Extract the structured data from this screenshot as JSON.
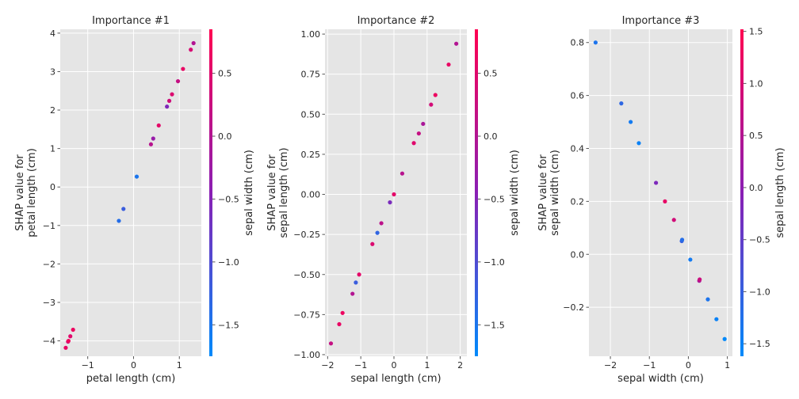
{
  "chart_data": [
    {
      "type": "scatter",
      "title": "Importance #1",
      "xlabel": "petal length (cm)",
      "ylabel": [
        "SHAP value for",
        "petal length (cm)"
      ],
      "colorbar_label": "sepal width (cm)",
      "xlim": [
        -1.6,
        1.48
      ],
      "ylim": [
        -4.4,
        4.1
      ],
      "xticks": [
        -1,
        0,
        1
      ],
      "yticks": [
        -4,
        -3,
        -2,
        -1,
        0,
        1,
        2,
        3,
        4
      ],
      "yticklabels": [
        "−4",
        "−3",
        "−2",
        "−1",
        "0",
        "1",
        "2",
        "3",
        "4"
      ],
      "xticklabels": [
        "−1",
        "0",
        "1"
      ],
      "clim": [
        -1.75,
        0.85
      ],
      "cticks": [
        -1.5,
        -1.0,
        -0.5,
        0.0,
        0.5
      ],
      "cticklabels": [
        "−1.5",
        "−1.0",
        "−0.5",
        "0.0",
        "0.5"
      ],
      "points": [
        {
          "x": -1.48,
          "y": -4.18,
          "c": 0.6
        },
        {
          "x": -1.43,
          "y": -4.02,
          "c": 0.3
        },
        {
          "x": -1.42,
          "y": -4.0,
          "c": 0.7
        },
        {
          "x": -1.38,
          "y": -3.88,
          "c": 0.5
        },
        {
          "x": -1.32,
          "y": -3.71,
          "c": 0.65
        },
        {
          "x": -0.32,
          "y": -0.88,
          "c": -1.4
        },
        {
          "x": -0.22,
          "y": -0.57,
          "c": -1.2
        },
        {
          "x": 0.07,
          "y": 0.27,
          "c": -1.5
        },
        {
          "x": 0.38,
          "y": 1.11,
          "c": 0.05
        },
        {
          "x": 0.43,
          "y": 1.26,
          "c": -0.3
        },
        {
          "x": 0.55,
          "y": 1.6,
          "c": 0.55
        },
        {
          "x": 0.73,
          "y": 2.09,
          "c": -0.55
        },
        {
          "x": 0.78,
          "y": 2.24,
          "c": 0.3
        },
        {
          "x": 0.84,
          "y": 2.41,
          "c": 0.45
        },
        {
          "x": 0.97,
          "y": 2.75,
          "c": 0.2
        },
        {
          "x": 1.08,
          "y": 3.07,
          "c": 0.6
        },
        {
          "x": 1.25,
          "y": 3.57,
          "c": 0.4
        },
        {
          "x": 1.31,
          "y": 3.74,
          "c": 0.0
        }
      ]
    },
    {
      "type": "scatter",
      "title": "Importance #2",
      "xlabel": "sepal length (cm)",
      "ylabel": [
        "SHAP value for",
        "sepal length (cm)"
      ],
      "colorbar_label": "sepal width (cm)",
      "xlim": [
        -2.08,
        2.2
      ],
      "ylim": [
        -1.01,
        1.03
      ],
      "xticks": [
        -2,
        -1,
        0,
        1,
        2
      ],
      "xticklabels": [
        "−2",
        "−1",
        "0",
        "1",
        "2"
      ],
      "yticks": [
        -1.0,
        -0.75,
        -0.5,
        -0.25,
        0.0,
        0.25,
        0.5,
        0.75,
        1.0
      ],
      "yticklabels": [
        "−1.00",
        "−0.75",
        "−0.50",
        "−0.25",
        "0.00",
        "0.25",
        "0.50",
        "0.75",
        "1.00"
      ],
      "clim": [
        -1.75,
        0.85
      ],
      "cticks": [
        -1.5,
        -1.0,
        -0.5,
        0.0,
        0.5
      ],
      "cticklabels": [
        "−1.5",
        "−1.0",
        "−0.5",
        "0.0",
        "0.5"
      ],
      "points": [
        {
          "x": -1.9,
          "y": -0.93,
          "c": 0.2
        },
        {
          "x": -1.65,
          "y": -0.81,
          "c": 0.6
        },
        {
          "x": -1.55,
          "y": -0.74,
          "c": 0.65
        },
        {
          "x": -1.05,
          "y": -0.5,
          "c": 0.55
        },
        {
          "x": -1.15,
          "y": -0.55,
          "c": -1.2
        },
        {
          "x": -1.25,
          "y": -0.62,
          "c": 0.0
        },
        {
          "x": -0.65,
          "y": -0.31,
          "c": 0.45
        },
        {
          "x": -0.5,
          "y": -0.24,
          "c": -1.3
        },
        {
          "x": -0.38,
          "y": -0.18,
          "c": 0.1
        },
        {
          "x": -0.12,
          "y": -0.05,
          "c": -0.6
        },
        {
          "x": 0.0,
          "y": 0.0,
          "c": 0.55
        },
        {
          "x": 0.25,
          "y": 0.13,
          "c": 0.05
        },
        {
          "x": 0.6,
          "y": 0.32,
          "c": 0.5
        },
        {
          "x": 0.75,
          "y": 0.38,
          "c": 0.2
        },
        {
          "x": 0.88,
          "y": 0.44,
          "c": -0.1
        },
        {
          "x": 1.12,
          "y": 0.56,
          "c": 0.35
        },
        {
          "x": 1.25,
          "y": 0.62,
          "c": 0.65
        },
        {
          "x": 1.65,
          "y": 0.81,
          "c": 0.6
        },
        {
          "x": 1.88,
          "y": 0.94,
          "c": 0.0
        }
      ]
    },
    {
      "type": "scatter",
      "title": "Importance #3",
      "xlabel": "sepal width (cm)",
      "ylabel": [
        "SHAP value for",
        "sepal width (cm)"
      ],
      "colorbar_label": "sepal length (cm)",
      "xlim": [
        -2.55,
        1.13
      ],
      "ylim": [
        -0.385,
        0.85
      ],
      "xticks": [
        -2,
        -1,
        0,
        1
      ],
      "xticklabels": [
        "−2",
        "−1",
        "0",
        "1"
      ],
      "yticks": [
        -0.2,
        0.0,
        0.2,
        0.4,
        0.6,
        0.8
      ],
      "yticklabels": [
        "−0.2",
        "0.0",
        "0.2",
        "0.4",
        "0.6",
        "0.8"
      ],
      "clim": [
        -1.62,
        1.52
      ],
      "cticks": [
        -1.5,
        -1.0,
        -0.5,
        0.0,
        0.5,
        1.0,
        1.5
      ],
      "cticklabels": [
        "−1.5",
        "−1.0",
        "−0.5",
        "0.0",
        "0.5",
        "1.0",
        "1.5"
      ],
      "points": [
        {
          "x": -2.38,
          "y": 0.8,
          "c": -1.3
        },
        {
          "x": -1.72,
          "y": 0.57,
          "c": -1.1
        },
        {
          "x": -1.48,
          "y": 0.5,
          "c": -1.4
        },
        {
          "x": -1.27,
          "y": 0.42,
          "c": -1.5
        },
        {
          "x": -0.83,
          "y": 0.27,
          "c": -0.2
        },
        {
          "x": -0.6,
          "y": 0.2,
          "c": 1.2
        },
        {
          "x": -0.37,
          "y": 0.13,
          "c": 0.9
        },
        {
          "x": -0.17,
          "y": 0.05,
          "c": -1.0
        },
        {
          "x": -0.16,
          "y": 0.055,
          "c": -1.2
        },
        {
          "x": 0.05,
          "y": -0.02,
          "c": -1.4
        },
        {
          "x": 0.28,
          "y": -0.1,
          "c": 0.4
        },
        {
          "x": 0.29,
          "y": -0.095,
          "c": 0.8
        },
        {
          "x": 0.5,
          "y": -0.17,
          "c": -1.3
        },
        {
          "x": 0.72,
          "y": -0.245,
          "c": -1.5
        },
        {
          "x": 0.93,
          "y": -0.32,
          "c": -1.6
        }
      ]
    }
  ]
}
